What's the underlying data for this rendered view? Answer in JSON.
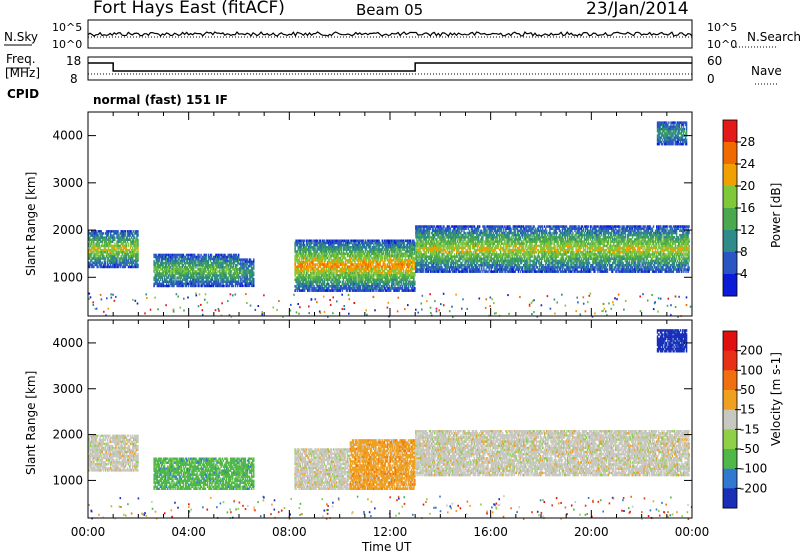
{
  "header": {
    "title": "Fort Hays East (fitACF)",
    "beam": "Beam 05",
    "date": "23/Jan/2014"
  },
  "summary": {
    "nsky_label": "N.Sky",
    "nsearch_label": "N.Search",
    "noise_ticks_left": [
      "10^5",
      "10^0"
    ],
    "noise_ticks_right": [
      "10^5",
      "10^0"
    ],
    "freq_label_1": "Freq.",
    "freq_label_2": "[MHz]",
    "freq_ticks": [
      "18",
      "8"
    ],
    "nave_label": "Nave",
    "nave_ticks": [
      "60",
      "0"
    ],
    "cpid_label": "CPID",
    "cpid_text": "normal (fast) 151 IF"
  },
  "chart_data": [
    {
      "type": "heatmap",
      "name": "power",
      "ylabel": "Slant Range [km]",
      "xlabel": "Time UT",
      "yticks": [
        "1000",
        "2000",
        "3000",
        "4000"
      ],
      "ylim": [
        180,
        4500
      ],
      "xlim_hours": [
        0,
        24
      ],
      "xticks": [
        "00:00",
        "04:00",
        "08:00",
        "12:00",
        "16:00",
        "20:00",
        "00:00"
      ],
      "colorbar": {
        "label": "Power [dB]",
        "ticks": [
          "4",
          "8",
          "12",
          "16",
          "20",
          "24",
          "28"
        ],
        "colors": [
          "#0b1bd8",
          "#2a56c4",
          "#2f8a8a",
          "#4aa84e",
          "#7fc83a",
          "#f0a000",
          "#f06a00",
          "#e41a1a"
        ]
      },
      "echo_bands": [
        {
          "t0": 0.0,
          "t1": 2.0,
          "r0": 1200,
          "r1": 2000,
          "level": 4
        },
        {
          "t0": 2.6,
          "t1": 6.0,
          "r0": 800,
          "r1": 1500,
          "level": 3
        },
        {
          "t0": 6.0,
          "t1": 6.6,
          "r0": 800,
          "r1": 1400,
          "level": 2
        },
        {
          "t0": 8.2,
          "t1": 13.0,
          "r0": 700,
          "r1": 1800,
          "level": 5
        },
        {
          "t0": 13.0,
          "t1": 23.9,
          "r0": 1100,
          "r1": 2100,
          "level": 4
        },
        {
          "t0": 22.6,
          "t1": 23.8,
          "r0": 3800,
          "r1": 4300,
          "level": 2
        }
      ]
    },
    {
      "type": "heatmap",
      "name": "velocity",
      "ylabel": "Slant Range [km]",
      "xlabel": "Time UT",
      "yticks": [
        "1000",
        "2000",
        "3000",
        "4000"
      ],
      "ylim": [
        180,
        4500
      ],
      "xlim_hours": [
        0,
        24
      ],
      "xticks": [
        "00:00",
        "04:00",
        "08:00",
        "12:00",
        "16:00",
        "20:00",
        "00:00"
      ],
      "colorbar": {
        "label": "Velocity [m s-1]",
        "ticks": [
          "200",
          "100",
          "50",
          "15",
          "-15",
          "-50",
          "-100",
          "-200"
        ],
        "colors": [
          "#1a2fb8",
          "#2f7ad0",
          "#50b848",
          "#8fd048",
          "#c8c8c0",
          "#f0a020",
          "#f07010",
          "#e83018",
          "#e01010"
        ]
      },
      "echo_bands": [
        {
          "t0": 0.0,
          "t1": 2.0,
          "r0": 1200,
          "r1": 2000,
          "level": 4
        },
        {
          "t0": 2.6,
          "t1": 6.6,
          "r0": 800,
          "r1": 1500,
          "level": 2
        },
        {
          "t0": 8.2,
          "t1": 10.4,
          "r0": 800,
          "r1": 1700,
          "level": 4
        },
        {
          "t0": 10.4,
          "t1": 13.0,
          "r0": 800,
          "r1": 1900,
          "level": 5
        },
        {
          "t0": 13.0,
          "t1": 23.9,
          "r0": 1100,
          "r1": 2100,
          "level": 4
        },
        {
          "t0": 22.6,
          "t1": 23.8,
          "r0": 3800,
          "r1": 4300,
          "level": 0
        }
      ]
    }
  ]
}
